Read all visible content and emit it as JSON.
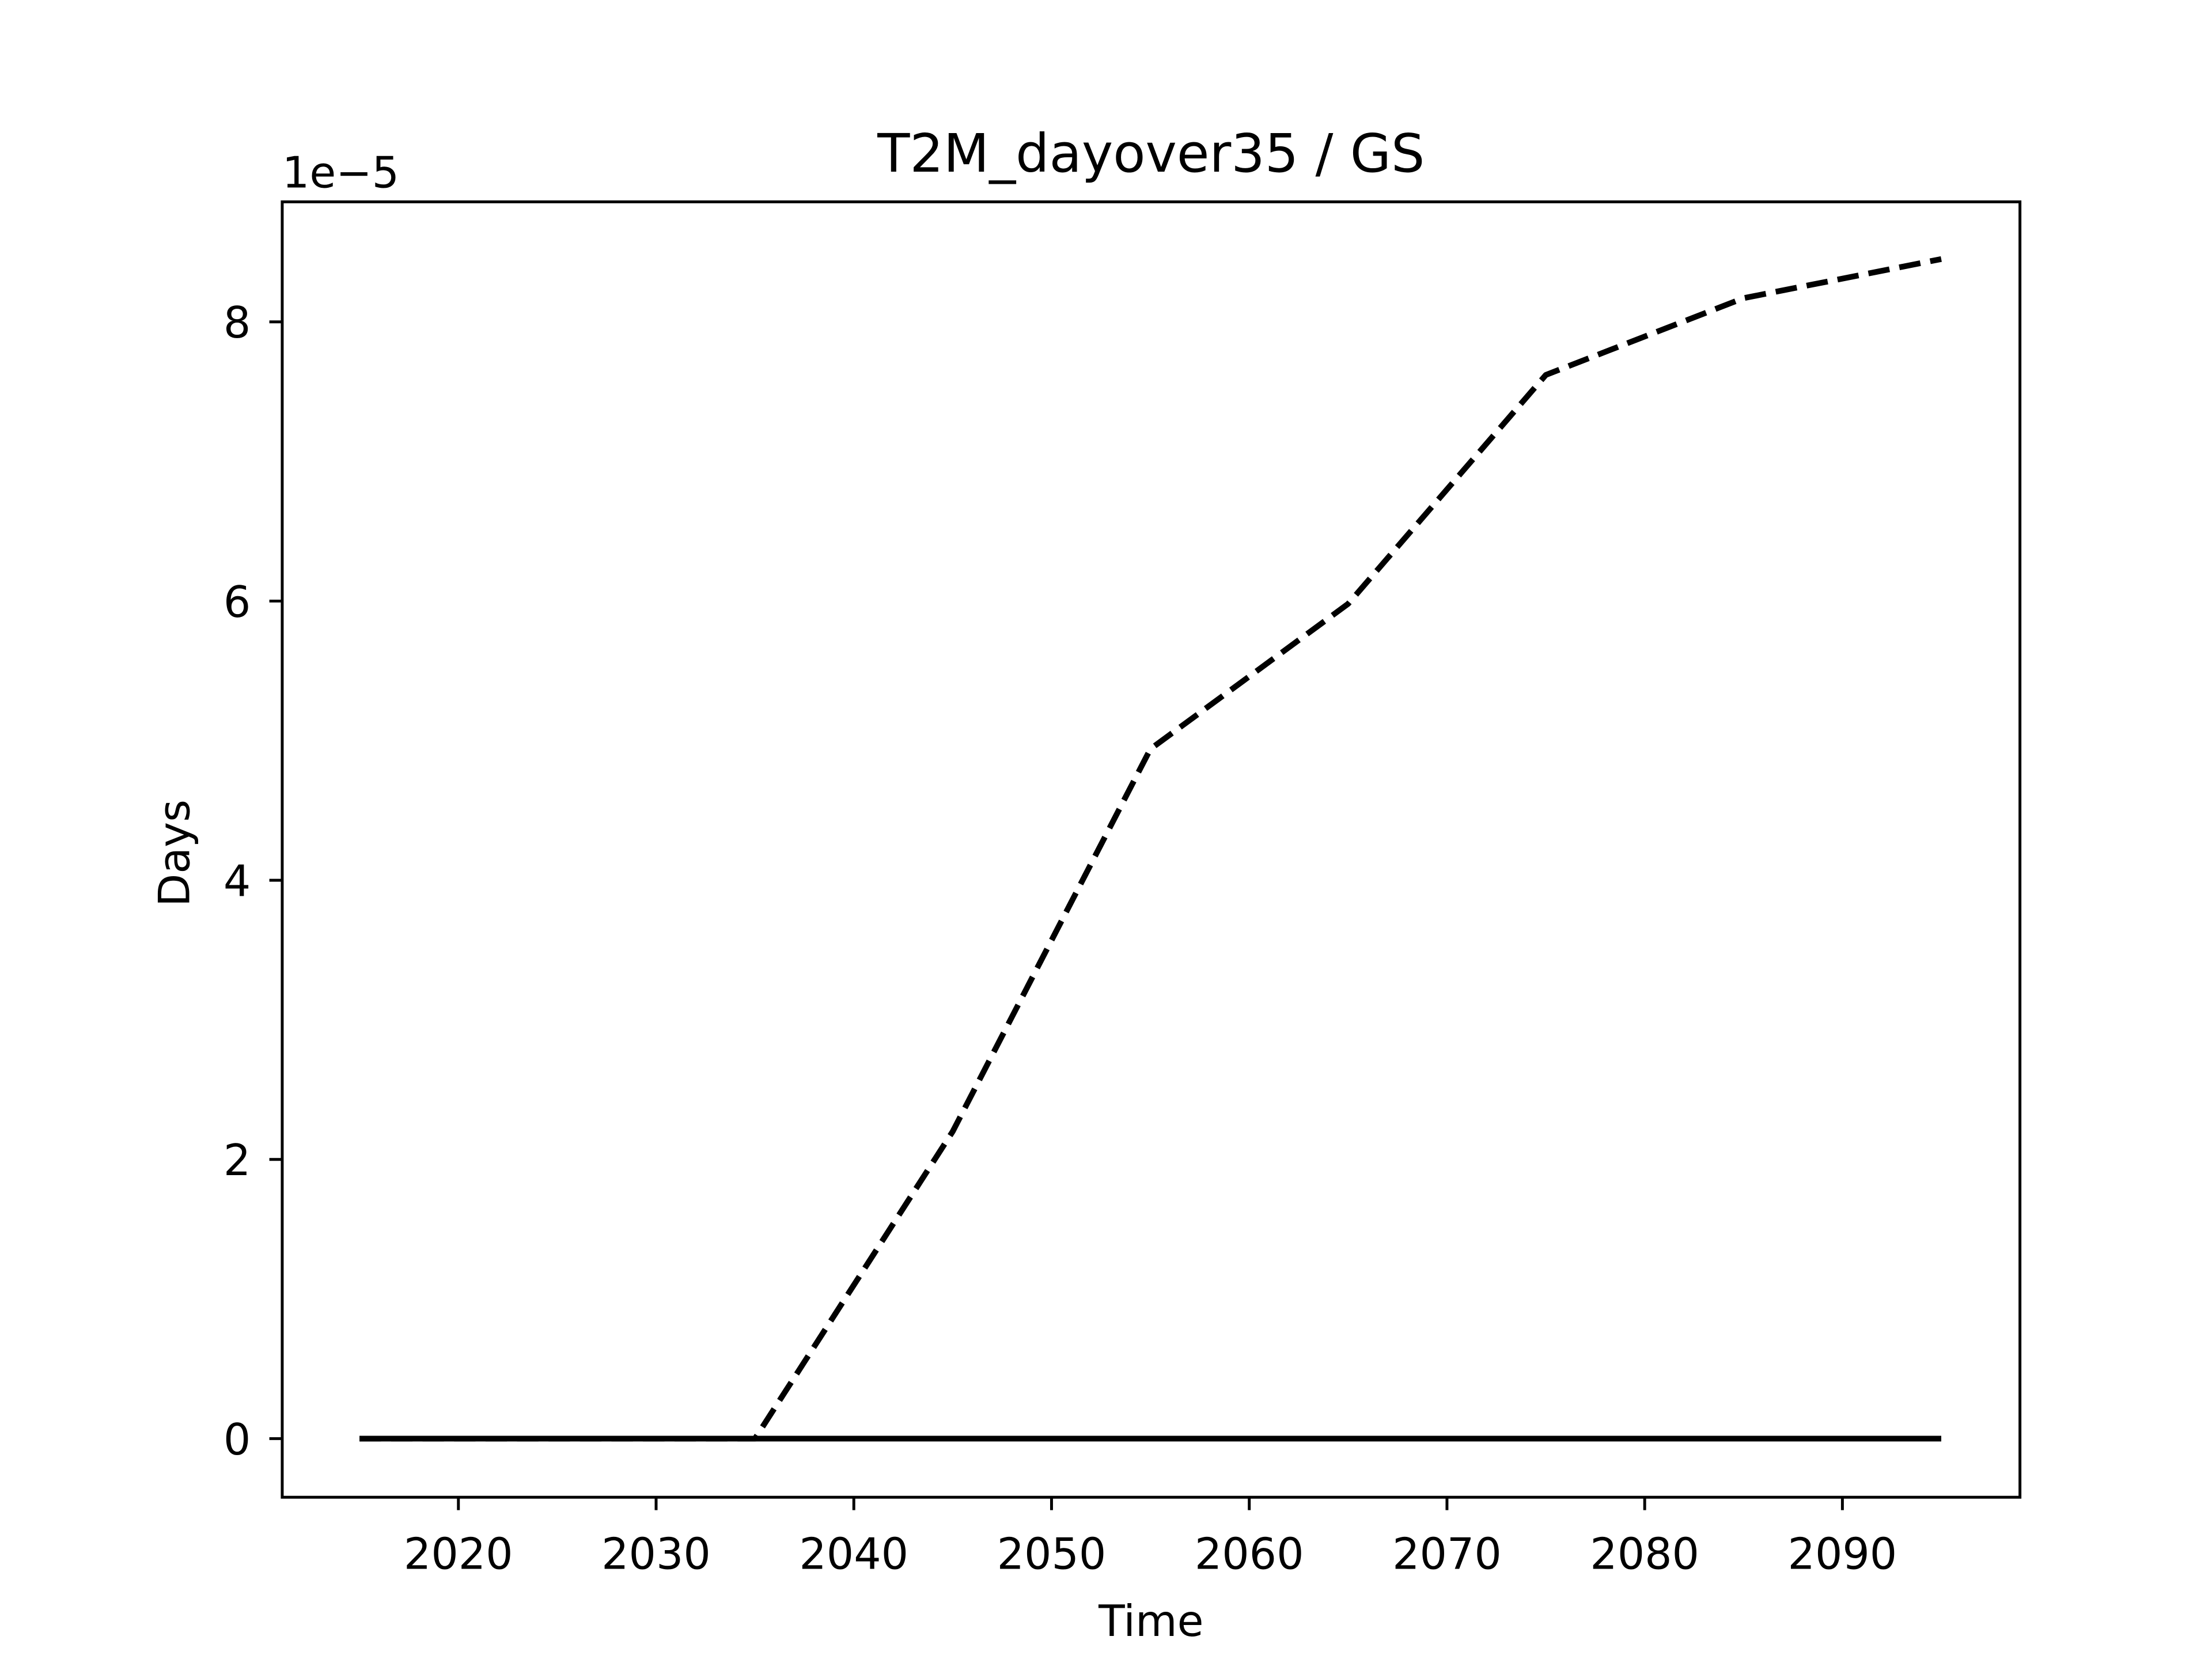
{
  "chart_data": {
    "type": "line",
    "title": "T2M_dayover35 / GS",
    "xlabel": "Time",
    "ylabel": "Days",
    "offset_label": "1e−5",
    "x": [
      2015,
      2025,
      2035,
      2045,
      2055,
      2065,
      2075,
      2085,
      2095
    ],
    "series": [
      {
        "color": "#000000",
        "style": "dashed",
        "values": [
          0,
          0,
          0,
          2.2,
          4.94,
          5.98,
          7.62,
          8.17,
          8.45
        ]
      },
      {
        "color": "#000000",
        "style": "solid",
        "values": [
          0,
          0,
          0,
          0,
          0,
          0,
          0,
          0,
          0
        ]
      }
    ],
    "xlim": [
      2011.09,
      2098.98
    ],
    "xticks": [
      2020,
      2030,
      2040,
      2050,
      2060,
      2070,
      2080,
      2090
    ],
    "ylim": [
      -0.42,
      8.86
    ],
    "yticks": [
      0,
      2,
      4,
      6,
      8
    ],
    "grid": false
  }
}
